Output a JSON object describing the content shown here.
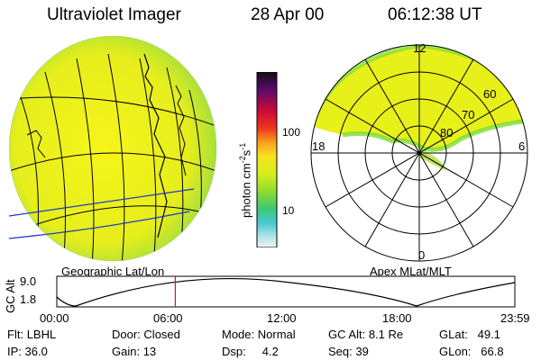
{
  "header": {
    "instrument": "Ultraviolet Imager",
    "date": "28 Apr 00",
    "time": "06:12:38 UT"
  },
  "colorbar": {
    "unit_label": "photon cm",
    "unit_sup1": "-2",
    "unit_mid": "s",
    "unit_sup2": "-1",
    "tick_100": "100",
    "tick_10": "10"
  },
  "polar": {
    "mlt_top": "12",
    "mlt_left": "18",
    "mlt_right": "6",
    "mlt_bottom": "0",
    "lat_60": "60",
    "lat_70": "70",
    "lat_80": "80"
  },
  "panel_labels": {
    "left": "Geographic Lat/Lon",
    "right": "Apex MLat/MLT"
  },
  "altitude_plot": {
    "axis_title": "GC Alt",
    "y_max": "9.0",
    "y_min": "1.8",
    "x_ticks": [
      "00:00",
      "06:00",
      "12:00",
      "18:00",
      "23:59"
    ],
    "current_time_fraction": 0.2587
  },
  "status": {
    "filter_label": "Flt:",
    "filter_value": "LBHL",
    "door_label": "Door:",
    "door_value": "Closed",
    "mode_label": "Mode:",
    "mode_value": "Normal",
    "gcalt_label": "GC Alt:",
    "gcalt_value": "8.1 Re",
    "glat_label": "GLat:",
    "glat_value": "49.1",
    "ip_label": "IP:",
    "ip_value": "36.0",
    "gain_label": "Gain:",
    "gain_value": "13",
    "dsp_label": "Dsp:",
    "dsp_value": "4.2",
    "seq_label": "Seq:",
    "seq_value": "39",
    "glon_label": "GLon:",
    "glon_value": "66.8"
  },
  "colors": {
    "aurora_fill": "#e8f01a",
    "aurora_edge": "#7ddc3a",
    "marker_line": "#e0141e",
    "orbit_line": "#000000"
  }
}
